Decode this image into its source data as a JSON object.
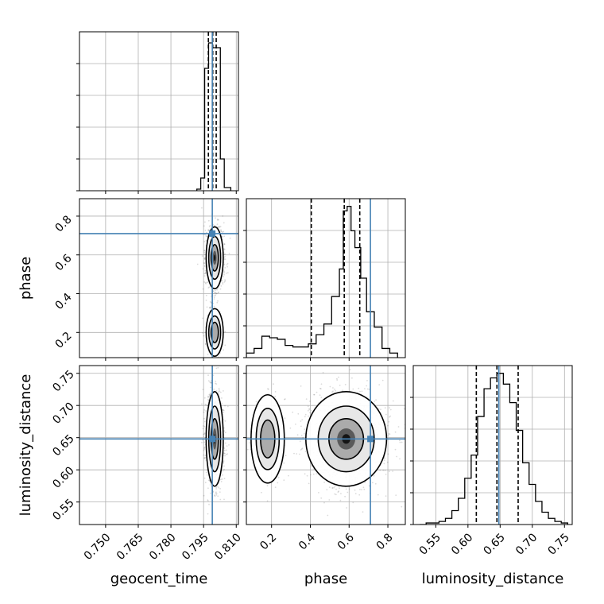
{
  "chart_data": {
    "type": "corner",
    "parameters": [
      "geocent_time",
      "phase",
      "luminosity_distance"
    ],
    "truths": {
      "geocent_time": 0.799,
      "phase": 0.71,
      "luminosity_distance": 0.648
    },
    "axis_ranges": {
      "geocent_time": [
        0.738,
        0.811
      ],
      "phase": [
        0.07,
        0.89
      ],
      "luminosity_distance": [
        0.515,
        0.762
      ]
    },
    "ticks": {
      "geocent_time": {
        "values": [
          0.75,
          0.765,
          0.78,
          0.795,
          0.81
        ],
        "labels": [
          "0.750",
          "0.765",
          "0.780",
          "0.795",
          "0.810"
        ]
      },
      "phase": {
        "values": [
          0.2,
          0.4,
          0.6,
          0.8
        ],
        "labels": [
          "0.2",
          "0.4",
          "0.6",
          "0.8"
        ]
      },
      "luminosity_distance": {
        "values": [
          0.55,
          0.6,
          0.65,
          0.7,
          0.75
        ],
        "labels": [
          "0.55",
          "0.60",
          "0.65",
          "0.70",
          "0.75"
        ]
      }
    },
    "grid": true,
    "histograms": [
      {
        "parameter": "geocent_time",
        "edges": [
          0.7919,
          0.7937,
          0.7955,
          0.7973,
          0.7991,
          0.8009,
          0.8027,
          0.8045,
          0.8075
        ],
        "counts": [
          1,
          8,
          77,
          93,
          90,
          90,
          20,
          2
        ],
        "quantiles": [
          0.7972,
          0.7992,
          0.8008
        ],
        "ymax": 100
      },
      {
        "parameter": "phase",
        "edges": [
          0.07,
          0.11,
          0.15,
          0.19,
          0.23,
          0.27,
          0.31,
          0.35,
          0.39,
          0.43,
          0.47,
          0.51,
          0.55,
          0.57,
          0.59,
          0.61,
          0.63,
          0.66,
          0.69,
          0.73,
          0.77,
          0.81,
          0.85
        ],
        "counts": [
          3,
          6,
          14,
          13,
          12,
          8,
          7,
          7,
          9,
          15,
          22,
          40,
          58,
          96,
          99,
          83,
          72,
          52,
          30,
          20,
          6,
          3
        ],
        "quantiles": [
          0.405,
          0.575,
          0.655
        ],
        "ymax": 104
      },
      {
        "parameter": "luminosity_distance",
        "edges": [
          0.525,
          0.535,
          0.545,
          0.555,
          0.565,
          0.575,
          0.585,
          0.595,
          0.605,
          0.615,
          0.625,
          0.635,
          0.645,
          0.655,
          0.665,
          0.675,
          0.685,
          0.695,
          0.705,
          0.715,
          0.725,
          0.735,
          0.745,
          0.755
        ],
        "counts": [
          0,
          1,
          1,
          2,
          4,
          9,
          17,
          30,
          45,
          70,
          88,
          95,
          98,
          91,
          79,
          61,
          40,
          26,
          15,
          8,
          4,
          2,
          1
        ],
        "quantiles": [
          0.613,
          0.645,
          0.678
        ],
        "ymax": 103
      }
    ],
    "joint": [
      {
        "x": "geocent_time",
        "y": "phase",
        "clusters": [
          {
            "cx": 0.8001,
            "cy": 0.585,
            "sx": 0.0016,
            "sy": 0.065,
            "weight": 0.85
          },
          {
            "cx": 0.8001,
            "cy": 0.2,
            "sx": 0.0016,
            "sy": 0.05,
            "weight": 0.15
          }
        ]
      },
      {
        "x": "geocent_time",
        "y": "luminosity_distance",
        "clusters": [
          {
            "cx": 0.8001,
            "cy": 0.648,
            "sx": 0.0016,
            "sy": 0.03,
            "weight": 1.0
          }
        ]
      },
      {
        "x": "phase",
        "y": "luminosity_distance",
        "clusters": [
          {
            "cx": 0.585,
            "cy": 0.648,
            "sx": 0.085,
            "sy": 0.03,
            "weight": 0.85
          },
          {
            "cx": 0.18,
            "cy": 0.648,
            "sx": 0.035,
            "sy": 0.028,
            "weight": 0.15
          }
        ]
      }
    ],
    "colors": {
      "truth": "#4682b4",
      "hist": "#000000",
      "grid": "#b0b0b0",
      "points": "#000000"
    }
  }
}
